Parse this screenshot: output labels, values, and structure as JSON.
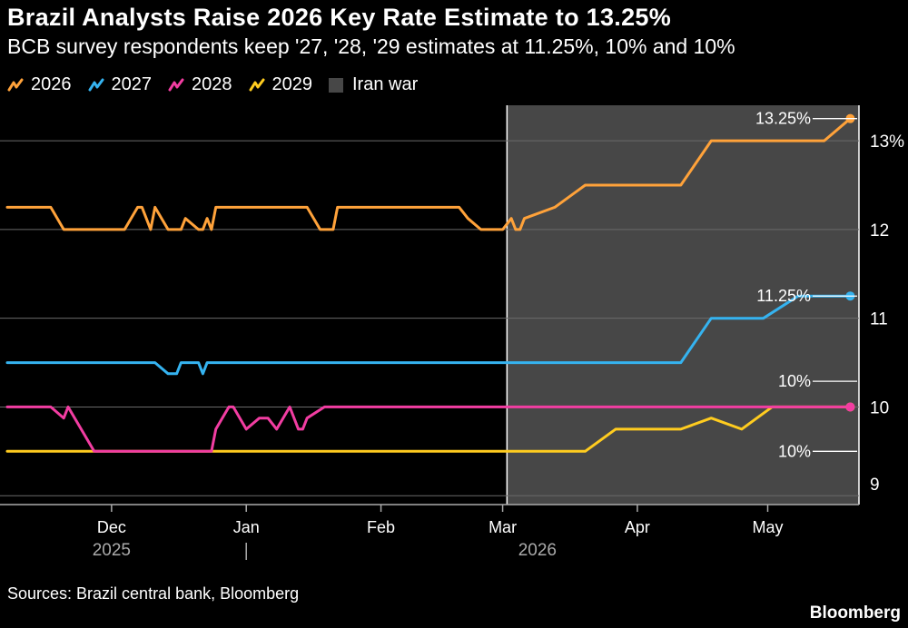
{
  "header": {
    "title": "Brazil Analysts Raise 2026 Key Rate Estimate to 13.25%",
    "subtitle": "BCB survey respondents keep '27, '28, '29 estimates at 11.25%, 10% and 10%"
  },
  "footer": {
    "source": "Sources: Brazil central bank, Bloomberg",
    "brand": "Bloomberg"
  },
  "chart_data": {
    "type": "line",
    "title": "Brazil Analysts Raise 2026 Key Rate Estimate to 13.25%",
    "subtitle": "BCB survey respondents keep '27, '28, '29 estimates at 11.25%, 10% and 10%",
    "xlim": [
      "2025-11-07",
      "2026-05-22"
    ],
    "ylim": [
      8.9,
      13.4
    ],
    "y_ticks": [
      {
        "value": 9,
        "label": "9"
      },
      {
        "value": 10,
        "label": "10"
      },
      {
        "value": 11,
        "label": "11"
      },
      {
        "value": 12,
        "label": "12"
      },
      {
        "value": 13,
        "label": "13%"
      }
    ],
    "x_ticks": [
      {
        "date": "2025-12-01",
        "label": "Dec"
      },
      {
        "date": "2026-01-01",
        "label": "Jan"
      },
      {
        "date": "2026-02-01",
        "label": "Feb"
      },
      {
        "date": "2026-03-01",
        "label": "Mar"
      },
      {
        "date": "2026-04-01",
        "label": "Apr"
      },
      {
        "date": "2026-05-01",
        "label": "May"
      }
    ],
    "year_labels": [
      {
        "date": "2025-12-01",
        "label": "2025"
      },
      {
        "date": "2026-03-09",
        "label": "2026"
      }
    ],
    "year_divider": "2026-01-01",
    "grid": true,
    "legend_position": "top-left",
    "shaded_region": {
      "name": "Iran war",
      "start": "2026-03-02",
      "end": "2026-05-22",
      "color": "#474747"
    },
    "series": [
      {
        "name": "2026",
        "color": "#FFA23A",
        "points": [
          [
            "2025-11-07",
            12.25
          ],
          [
            "2025-11-17",
            12.25
          ],
          [
            "2025-11-20",
            12.0
          ],
          [
            "2025-12-04",
            12.0
          ],
          [
            "2025-12-07",
            12.25
          ],
          [
            "2025-12-08",
            12.25
          ],
          [
            "2025-12-10",
            12.0
          ],
          [
            "2025-12-11",
            12.25
          ],
          [
            "2025-12-14",
            12.0
          ],
          [
            "2025-12-17",
            12.0
          ],
          [
            "2025-12-18",
            12.125
          ],
          [
            "2025-12-21",
            12.0
          ],
          [
            "2025-12-22",
            12.0
          ],
          [
            "2025-12-23",
            12.125
          ],
          [
            "2025-12-24",
            12.0
          ],
          [
            "2025-12-25",
            12.25
          ],
          [
            "2026-01-15",
            12.25
          ],
          [
            "2026-01-18",
            12.0
          ],
          [
            "2026-01-21",
            12.0
          ],
          [
            "2026-01-22",
            12.25
          ],
          [
            "2026-02-19",
            12.25
          ],
          [
            "2026-02-21",
            12.125
          ],
          [
            "2026-02-24",
            12.0
          ],
          [
            "2026-03-01",
            12.0
          ],
          [
            "2026-03-03",
            12.125
          ],
          [
            "2026-03-04",
            12.0
          ],
          [
            "2026-03-05",
            12.0
          ],
          [
            "2026-03-06",
            12.125
          ],
          [
            "2026-03-13",
            12.25
          ],
          [
            "2026-03-20",
            12.5
          ],
          [
            "2026-04-11",
            12.5
          ],
          [
            "2026-04-18",
            13.0
          ],
          [
            "2026-05-14",
            13.0
          ],
          [
            "2026-05-20",
            13.25
          ]
        ],
        "end_label": "13.25%"
      },
      {
        "name": "2027",
        "color": "#35B3F0",
        "points": [
          [
            "2025-11-07",
            10.5
          ],
          [
            "2025-12-11",
            10.5
          ],
          [
            "2025-12-14",
            10.375
          ],
          [
            "2025-12-16",
            10.375
          ],
          [
            "2025-12-17",
            10.5
          ],
          [
            "2025-12-21",
            10.5
          ],
          [
            "2025-12-22",
            10.375
          ],
          [
            "2025-12-23",
            10.5
          ],
          [
            "2026-04-11",
            10.5
          ],
          [
            "2026-04-18",
            11.0
          ],
          [
            "2026-04-30",
            11.0
          ],
          [
            "2026-05-08",
            11.25
          ],
          [
            "2026-05-20",
            11.25
          ]
        ],
        "end_label": "11.25%"
      },
      {
        "name": "2028",
        "color": "#F23DA2",
        "points": [
          [
            "2025-11-07",
            10.0
          ],
          [
            "2025-11-17",
            10.0
          ],
          [
            "2025-11-20",
            9.875
          ],
          [
            "2025-11-21",
            10.0
          ],
          [
            "2025-11-24",
            9.75
          ],
          [
            "2025-11-27",
            9.5
          ],
          [
            "2025-12-24",
            9.5
          ],
          [
            "2025-12-25",
            9.75
          ],
          [
            "2025-12-28",
            10.0
          ],
          [
            "2025-12-29",
            10.0
          ],
          [
            "2026-01-01",
            9.75
          ],
          [
            "2026-01-04",
            9.875
          ],
          [
            "2026-01-06",
            9.875
          ],
          [
            "2026-01-08",
            9.75
          ],
          [
            "2026-01-11",
            10.0
          ],
          [
            "2026-01-13",
            9.75
          ],
          [
            "2026-01-14",
            9.75
          ],
          [
            "2026-01-15",
            9.875
          ],
          [
            "2026-01-19",
            10.0
          ],
          [
            "2026-05-20",
            10.0
          ]
        ],
        "end_label": "10%"
      },
      {
        "name": "2029",
        "color": "#FFCC1F",
        "points": [
          [
            "2025-11-07",
            9.5
          ],
          [
            "2026-03-20",
            9.5
          ],
          [
            "2026-03-27",
            9.75
          ],
          [
            "2026-04-11",
            9.75
          ],
          [
            "2026-04-18",
            9.875
          ],
          [
            "2026-04-25",
            9.75
          ],
          [
            "2026-05-02",
            10.0
          ],
          [
            "2026-05-20",
            10.0
          ]
        ],
        "end_label": "10%"
      }
    ]
  }
}
